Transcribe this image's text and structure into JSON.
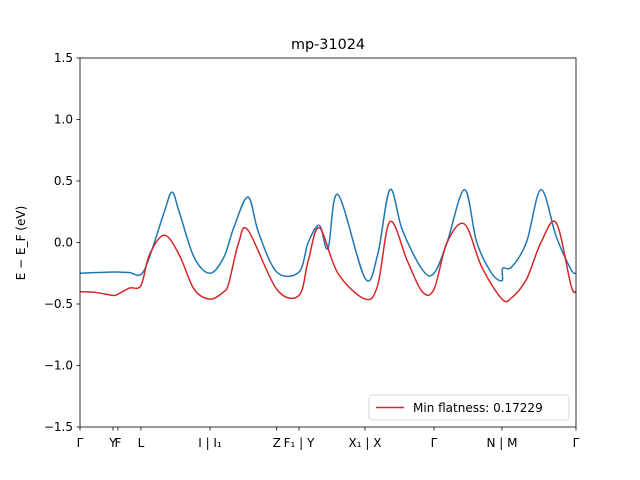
{
  "chart_data": {
    "type": "line",
    "title": "mp-31024",
    "xlabel": "",
    "ylabel": "E − E_F (eV)",
    "ylim": [
      -1.5,
      1.5
    ],
    "xlim": [
      0,
      1
    ],
    "yticks": [
      -1.5,
      -1.0,
      -0.5,
      0.0,
      0.5,
      1.0,
      1.5
    ],
    "ytick_labels": [
      "−1.5",
      "−1.0",
      "−0.5",
      "0.0",
      "0.5",
      "1.0",
      "1.5"
    ],
    "grid": false,
    "legend": {
      "placement": "bottom-right",
      "entries": [
        "Min flatness: 0.17229"
      ]
    },
    "xticks": [
      {
        "label": "Γ",
        "x": 0.0
      },
      {
        "label": "Y",
        "x": 0.0665
      },
      {
        "label": "F",
        "x": 0.0765
      },
      {
        "label": "L",
        "x": 0.1228
      },
      {
        "label": "I | I₁",
        "x": 0.2621
      },
      {
        "label": "Z",
        "x": 0.3966
      },
      {
        "label": "F₁ | Y",
        "x": 0.4415
      },
      {
        "label": "X₁ | X",
        "x": 0.5746
      },
      {
        "label": "Γ",
        "x": 0.7137
      },
      {
        "label": "N | M",
        "x": 0.8508
      },
      {
        "label": "Γ",
        "x": 1.0
      }
    ],
    "series": [
      {
        "name": "",
        "color": "#1f77b4",
        "x": [
          0.0,
          0.03,
          0.0665,
          0.0765,
          0.1,
          0.1228,
          0.14,
          0.17,
          0.1855,
          0.2,
          0.23,
          0.2621,
          0.29,
          0.31,
          0.3387,
          0.36,
          0.3966,
          0.4415,
          0.46,
          0.4825,
          0.5,
          0.52,
          0.5746,
          0.6,
          0.625,
          0.65,
          0.69,
          0.7137,
          0.74,
          0.7752,
          0.8,
          0.83,
          0.8508,
          0.852,
          0.87,
          0.9,
          0.9294,
          0.96,
          0.99,
          1.0
        ],
        "y": [
          -0.25,
          -0.245,
          -0.24,
          -0.24,
          -0.245,
          -0.26,
          -0.12,
          0.25,
          0.41,
          0.25,
          -0.12,
          -0.25,
          -0.12,
          0.12,
          0.37,
          0.08,
          -0.24,
          -0.24,
          0.0,
          0.14,
          -0.05,
          0.39,
          -0.29,
          -0.1,
          0.43,
          0.1,
          -0.22,
          -0.25,
          0.0,
          0.43,
          0.0,
          -0.25,
          -0.31,
          -0.21,
          -0.2,
          0.0,
          0.43,
          0.05,
          -0.22,
          -0.25
        ]
      },
      {
        "name": "Min flatness: 0.17229",
        "color": "#d62728",
        "x": [
          0.0,
          0.03,
          0.0665,
          0.0765,
          0.1,
          0.1228,
          0.14,
          0.17,
          0.2,
          0.23,
          0.2621,
          0.29,
          0.3,
          0.32,
          0.3387,
          0.3966,
          0.4415,
          0.46,
          0.4825,
          0.52,
          0.5746,
          0.6,
          0.625,
          0.66,
          0.69,
          0.7137,
          0.74,
          0.7752,
          0.81,
          0.8508,
          0.87,
          0.9,
          0.9294,
          0.96,
          0.99,
          1.0
        ],
        "y": [
          -0.4,
          -0.405,
          -0.43,
          -0.42,
          -0.37,
          -0.35,
          -0.1,
          0.06,
          -0.1,
          -0.38,
          -0.46,
          -0.4,
          -0.33,
          0.0,
          0.1,
          -0.38,
          -0.43,
          -0.15,
          0.12,
          -0.25,
          -0.46,
          -0.35,
          0.17,
          -0.15,
          -0.4,
          -0.38,
          0.0,
          0.15,
          -0.2,
          -0.46,
          -0.45,
          -0.3,
          0.0,
          0.16,
          -0.35,
          -0.4
        ]
      }
    ]
  }
}
